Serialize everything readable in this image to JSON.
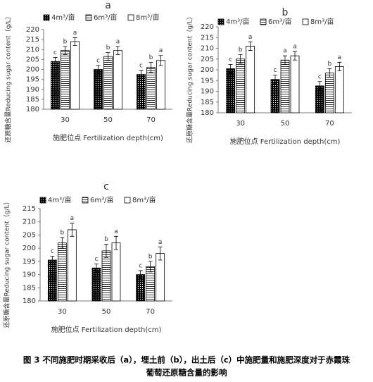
{
  "chart_data": [
    {
      "type": "bar",
      "title": "a",
      "ylabel": "还原糖含量Reducing sugar content（g/L）",
      "xlabel": "施肥位点 Fertilization depth(cm)",
      "categories": [
        "30",
        "50",
        "70"
      ],
      "ylim": [
        180,
        220
      ],
      "yticks": [
        180,
        185,
        190,
        195,
        200,
        205,
        210,
        215,
        220
      ],
      "series": [
        {
          "name": "4m³/亩",
          "color": "#000000",
          "pattern": "dots",
          "values": [
            204,
            200,
            197.5
          ],
          "errors": [
            2,
            2,
            2
          ],
          "letters": [
            "c",
            "c",
            "c"
          ]
        },
        {
          "name": "6m³/亩",
          "color": "#000000",
          "pattern": "hlines",
          "values": [
            209.5,
            206.5,
            201
          ],
          "errors": [
            2,
            2,
            2.5
          ],
          "letters": [
            "b",
            "b",
            "b"
          ]
        },
        {
          "name": "8m³/亩",
          "color": "#000000",
          "pattern": "none",
          "values": [
            214,
            209.5,
            204.5
          ],
          "errors": [
            2,
            2,
            2.5
          ],
          "letters": [
            "a",
            "a",
            "a"
          ]
        }
      ]
    },
    {
      "type": "bar",
      "title": "b",
      "ylabel": "还原糖含量Reducing sugar content（g/L）",
      "xlabel": "施肥位点 Fertilization depth(cm)",
      "categories": [
        "30",
        "50",
        "70"
      ],
      "ylim": [
        180,
        220
      ],
      "yticks": [
        180,
        185,
        190,
        195,
        200,
        205,
        210,
        215,
        220
      ],
      "series": [
        {
          "name": "4m³/亩",
          "color": "#000000",
          "pattern": "dots",
          "values": [
            200.5,
            195.5,
            192.5
          ],
          "errors": [
            2,
            2,
            2
          ],
          "letters": [
            "c",
            "c",
            "c"
          ]
        },
        {
          "name": "6m³/亩",
          "color": "#000000",
          "pattern": "hlines",
          "values": [
            205,
            204.5,
            198.5
          ],
          "errors": [
            2,
            2,
            2
          ],
          "letters": [
            "b",
            "a",
            "b"
          ]
        },
        {
          "name": "8m³/亩",
          "color": "#000000",
          "pattern": "none",
          "values": [
            211,
            206.5,
            201.5
          ],
          "errors": [
            2,
            2,
            2
          ],
          "letters": [
            "a",
            "a",
            "a"
          ]
        }
      ]
    },
    {
      "type": "bar",
      "title": "c",
      "ylabel": "还原糖含量Reducing sugar content（g/L）",
      "xlabel": "施肥位点 Fertilization depth(cm)",
      "categories": [
        "30",
        "50",
        "70"
      ],
      "ylim": [
        180,
        215
      ],
      "yticks": [
        180,
        185,
        190,
        195,
        200,
        205,
        210,
        215
      ],
      "series": [
        {
          "name": "4m³/亩",
          "color": "#000000",
          "pattern": "dots",
          "values": [
            195.5,
            192.5,
            190
          ],
          "errors": [
            1.5,
            1.5,
            1.5
          ],
          "letters": [
            "c",
            "c",
            "c"
          ]
        },
        {
          "name": "6m³/亩",
          "color": "#000000",
          "pattern": "hlines",
          "values": [
            202,
            199,
            193
          ],
          "errors": [
            2,
            2.5,
            2
          ],
          "letters": [
            "b",
            "b",
            "b"
          ]
        },
        {
          "name": "8m³/亩",
          "color": "#000000",
          "pattern": "none",
          "values": [
            207,
            202,
            198
          ],
          "errors": [
            2.5,
            2.5,
            2.5
          ],
          "letters": [
            "a",
            "a",
            "a"
          ]
        }
      ]
    }
  ],
  "caption": [
    "图 3 不同施肥时期采收后（a），埋土前（b），出土后（c）中施肥量和施肥深度对于赤霞珠",
    "葡萄还原糖含量的影响"
  ]
}
